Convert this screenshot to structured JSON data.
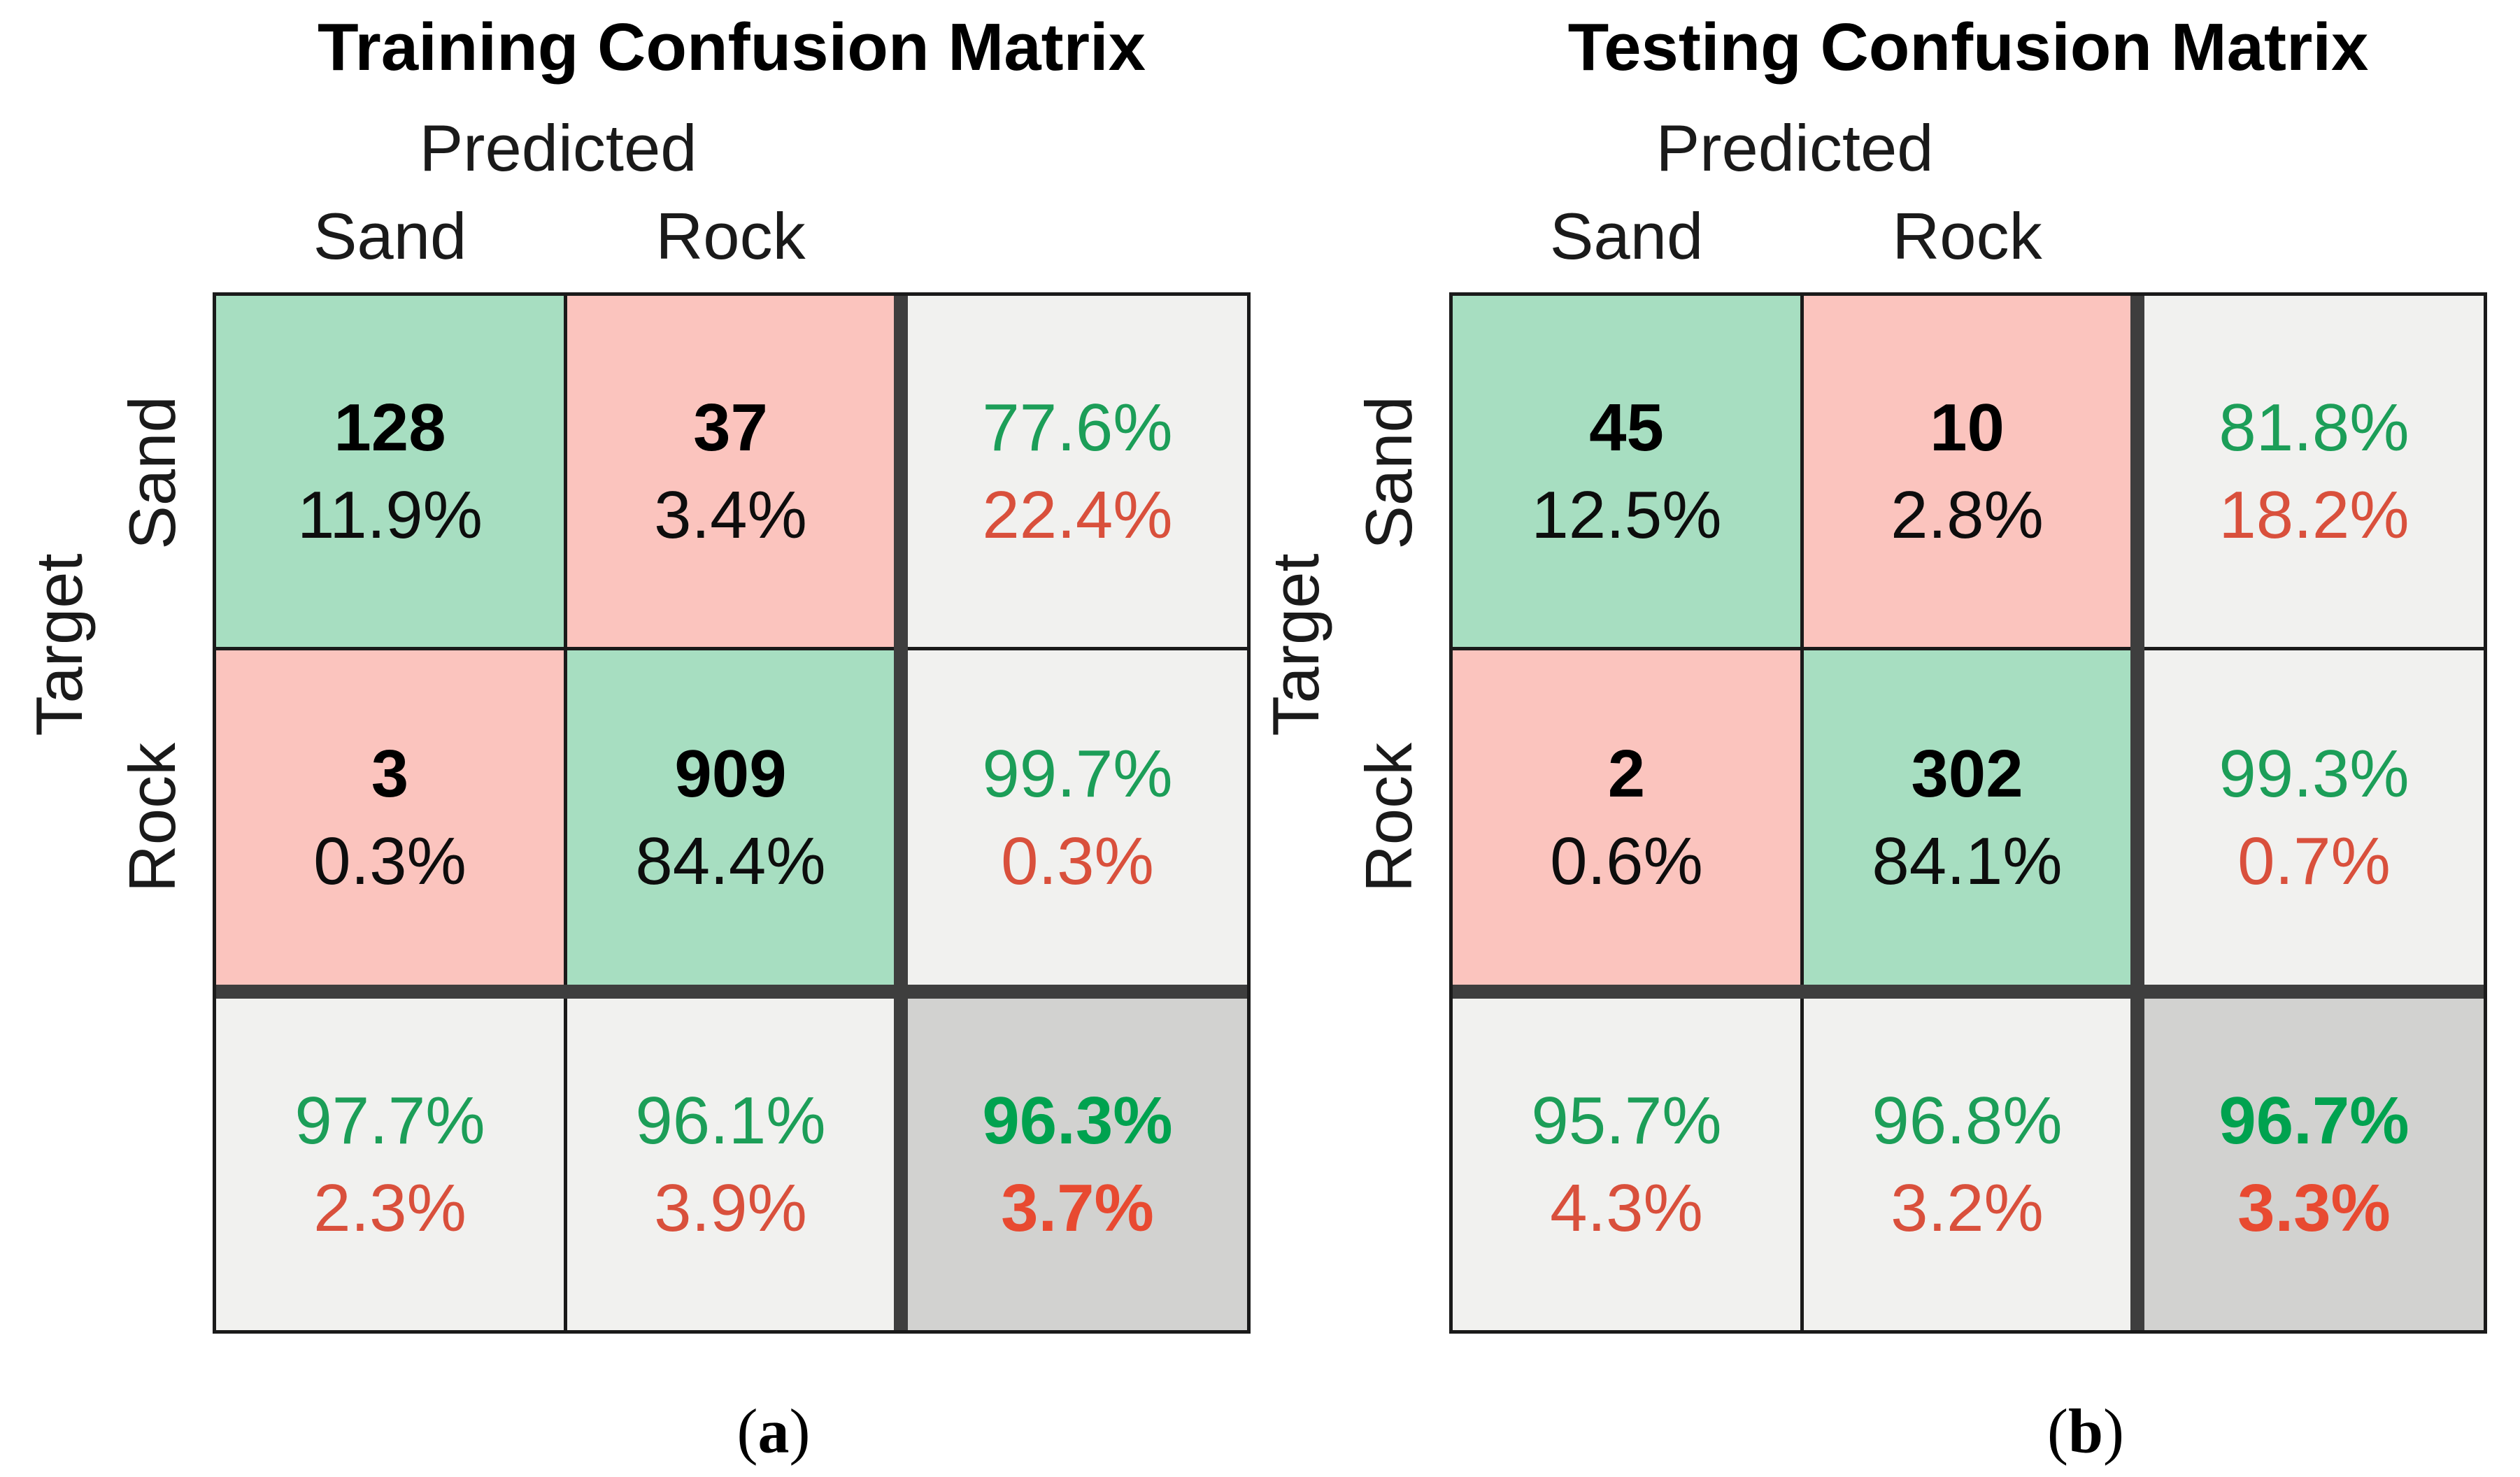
{
  "colors": {
    "cell-green": "#A7DEC1",
    "cell-pink": "#FBC4BE",
    "cell-gray": "#F1F1EF",
    "cell-darkgray": "#D2D2D0",
    "line-thin": "#1A1A1A",
    "line-thick": "#3E3E3E",
    "text-green": "#1C9E58",
    "text-green-bold": "#00A24F",
    "text-red": "#D9503C",
    "text-red-bold": "#E84A31"
  },
  "matrices": [
    {
      "title": "Training Confusion Matrix",
      "predicted_label": "Predicted",
      "target_label": "Target",
      "col_labels": [
        "Sand",
        "Rock"
      ],
      "row_labels": [
        "Sand",
        "Rock"
      ],
      "cells": [
        {
          "line1": "128",
          "line2": "11.9%"
        },
        {
          "line1": "37",
          "line2": "3.4%"
        },
        {
          "line1": "77.6%",
          "line2": "22.4%"
        },
        {
          "line1": "3",
          "line2": "0.3%"
        },
        {
          "line1": "909",
          "line2": "84.4%"
        },
        {
          "line1": "99.7%",
          "line2": "0.3%"
        },
        {
          "line1": "97.7%",
          "line2": "2.3%"
        },
        {
          "line1": "96.1%",
          "line2": "3.9%"
        },
        {
          "line1": "96.3%",
          "line2": "3.7%"
        }
      ]
    },
    {
      "title": "Testing Confusion Matrix",
      "predicted_label": "Predicted",
      "target_label": "Target",
      "col_labels": [
        "Sand",
        "Rock"
      ],
      "row_labels": [
        "Sand",
        "Rock"
      ],
      "cells": [
        {
          "line1": "45",
          "line2": "12.5%"
        },
        {
          "line1": "10",
          "line2": "2.8%"
        },
        {
          "line1": "81.8%",
          "line2": "18.2%"
        },
        {
          "line1": "2",
          "line2": "0.6%"
        },
        {
          "line1": "302",
          "line2": "84.1%"
        },
        {
          "line1": "99.3%",
          "line2": "0.7%"
        },
        {
          "line1": "95.7%",
          "line2": "4.3%"
        },
        {
          "line1": "96.8%",
          "line2": "3.2%"
        },
        {
          "line1": "96.7%",
          "line2": "3.3%"
        }
      ]
    }
  ],
  "captions": [
    {
      "prefix": "(",
      "label": "a",
      "suffix": ")"
    },
    {
      "prefix": "(",
      "label": "b",
      "suffix": ")"
    }
  ],
  "chart_data": [
    {
      "type": "heatmap",
      "title": "Training Confusion Matrix",
      "xlabel": "Predicted",
      "ylabel": "Target",
      "classes": [
        "Sand",
        "Rock"
      ],
      "counts": [
        [
          128,
          37
        ],
        [
          3,
          909
        ]
      ],
      "count_percent_of_total": [
        [
          "11.9%",
          "3.4%"
        ],
        [
          "0.3%",
          "84.4%"
        ]
      ],
      "row_summary_correct_incorrect": [
        [
          "77.6%",
          "22.4%"
        ],
        [
          "99.7%",
          "0.3%"
        ]
      ],
      "col_summary_correct_incorrect": [
        [
          "97.7%",
          "2.3%"
        ],
        [
          "96.1%",
          "3.9%"
        ]
      ],
      "overall_accuracy_error": [
        "96.3%",
        "3.7%"
      ],
      "legend_position": "none",
      "grid": true
    },
    {
      "type": "heatmap",
      "title": "Testing Confusion Matrix",
      "xlabel": "Predicted",
      "ylabel": "Target",
      "classes": [
        "Sand",
        "Rock"
      ],
      "counts": [
        [
          45,
          10
        ],
        [
          2,
          302
        ]
      ],
      "count_percent_of_total": [
        [
          "12.5%",
          "2.8%"
        ],
        [
          "0.6%",
          "84.1%"
        ]
      ],
      "row_summary_correct_incorrect": [
        [
          "81.8%",
          "18.2%"
        ],
        [
          "99.3%",
          "0.7%"
        ]
      ],
      "col_summary_correct_incorrect": [
        [
          "95.7%",
          "4.3%"
        ],
        [
          "96.8%",
          "3.2%"
        ]
      ],
      "overall_accuracy_error": [
        "96.7%",
        "3.3%"
      ],
      "legend_position": "none",
      "grid": true
    }
  ]
}
